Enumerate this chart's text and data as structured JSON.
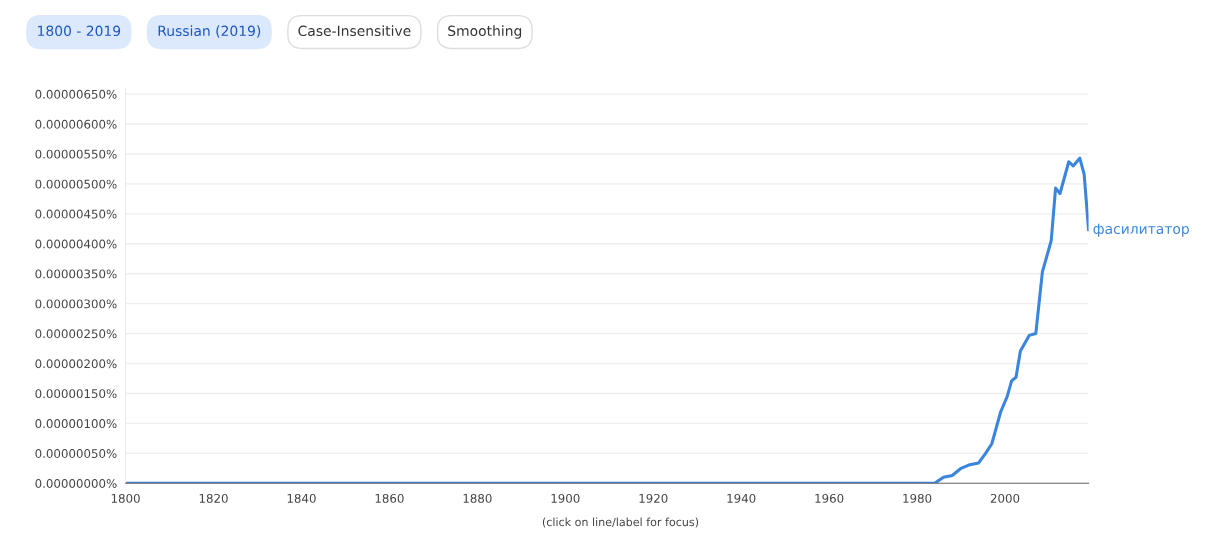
{
  "chart_data": {
    "type": "line",
    "annotations": [
      "1800 - 2019",
      "Russian (2019)",
      "Case-Insensitive",
      "Smoothing",
      "(click on line/label for focus)"
    ],
    "x": [
      1800,
      1984,
      1986,
      1988,
      1990,
      1992,
      1994,
      1995.5,
      1997,
      1999,
      2000.5,
      2001.5,
      2002.5,
      2003.5,
      2005.5,
      2007,
      2008.5,
      2010.5,
      2011.5,
      2012.5,
      2014.5,
      2015.5,
      2017,
      2018,
      2019
    ],
    "series": [
      {
        "name": "фасилитатор",
        "color": "#3a85de",
        "values": [
          0,
          0,
          1e-07,
          1.3e-07,
          2.5e-07,
          3.1e-07,
          3.4e-07,
          4.9e-07,
          6.6e-07,
          1.19e-06,
          1.45e-06,
          1.71e-06,
          1.77e-06,
          2.21e-06,
          2.47e-06,
          2.5e-06,
          3.53e-06,
          4.05e-06,
          4.93e-06,
          4.84e-06,
          5.37e-06,
          5.3e-06,
          5.43e-06,
          5.16e-06,
          4.23e-06
        ]
      }
    ],
    "xlim": [
      1800,
      2019
    ],
    "xticks": [
      1800,
      1820,
      1840,
      1860,
      1880,
      1900,
      1920,
      1940,
      1960,
      1980,
      2000
    ],
    "ylim": [
      0,
      6.6e-06
    ],
    "yticks": [
      {
        "value": 0,
        "label": "0.00000000%"
      },
      {
        "value": 5e-07,
        "label": "0.00000050%"
      },
      {
        "value": 1e-06,
        "label": "0.00000100%"
      },
      {
        "value": 1.5e-06,
        "label": "0.00000150%"
      },
      {
        "value": 2e-06,
        "label": "0.00000200%"
      },
      {
        "value": 2.5e-06,
        "label": "0.00000250%"
      },
      {
        "value": 3e-06,
        "label": "0.00000300%"
      },
      {
        "value": 3.5e-06,
        "label": "0.00000350%"
      },
      {
        "value": 4e-06,
        "label": "0.00000400%"
      },
      {
        "value": 4.5e-06,
        "label": "0.00000450%"
      },
      {
        "value": 5e-06,
        "label": "0.00000500%"
      },
      {
        "value": 5.5e-06,
        "label": "0.00000550%"
      },
      {
        "value": 6e-06,
        "label": "0.00000600%"
      },
      {
        "value": 6.5e-06,
        "label": "0.00000650%"
      }
    ],
    "grid": "y",
    "legend": false,
    "marker": "none",
    "line_style": "solid"
  }
}
